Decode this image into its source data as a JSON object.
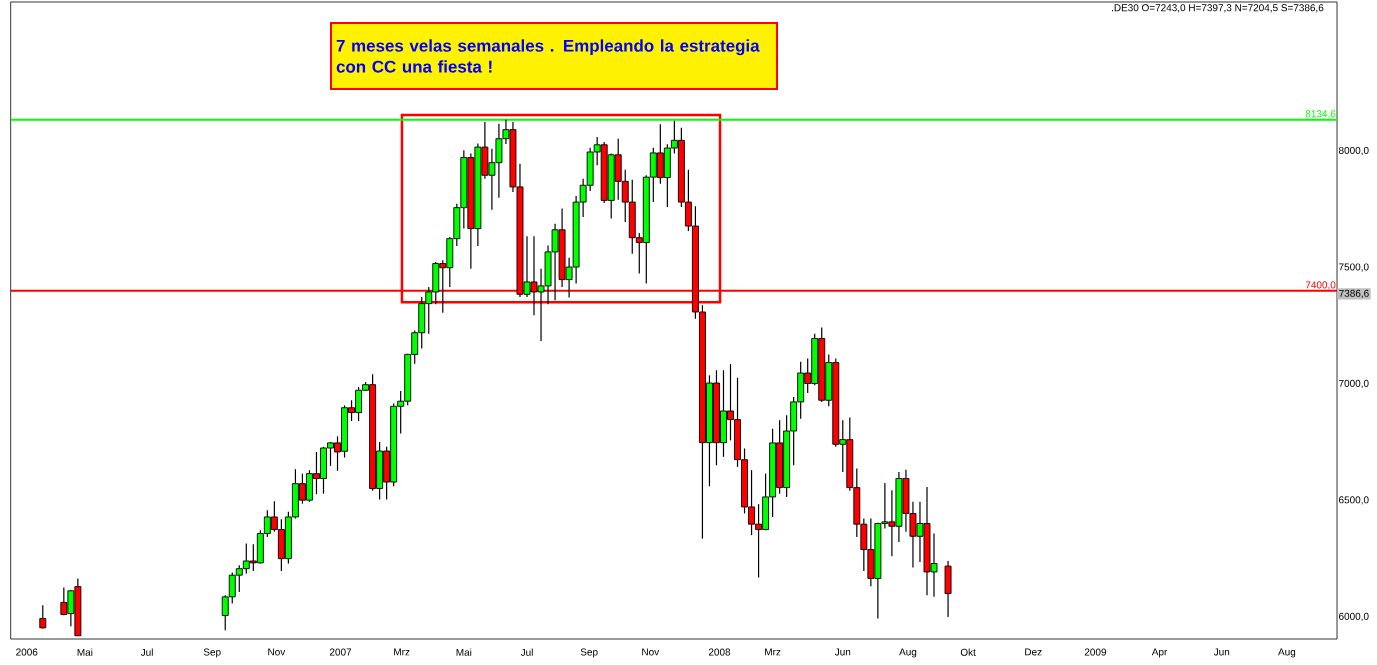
{
  "chart_data": {
    "type": "candlestick",
    "annotations": [
      "7 meses velas semanales . Empleando la estrategia con CC una fiesta !",
      ".DE30 O=7243,0 H=7397,3 N=7204,5 S=7386,6",
      {
        "text": "7386,6",
        "y": 7386.6
      }
    ],
    "xlim": [
      "2006-03-02",
      "2009-10-15"
    ],
    "ylim": [
      5905,
      8640
    ],
    "xticks": [
      {
        "value": "2006-03-18",
        "label": "2006"
      },
      {
        "value": "2006-05-15",
        "label": "Mai"
      },
      {
        "value": "2006-07-16",
        "label": "Jul"
      },
      {
        "value": "2006-09-19",
        "label": "Sep"
      },
      {
        "value": "2006-11-22",
        "label": "Nov"
      },
      {
        "value": "2007-01-25",
        "label": "2007"
      },
      {
        "value": "2007-03-27",
        "label": "Mrz"
      },
      {
        "value": "2007-05-28",
        "label": "Mai"
      },
      {
        "value": "2007-07-30",
        "label": "Jul"
      },
      {
        "value": "2007-09-30",
        "label": "Sep"
      },
      {
        "value": "2007-11-30",
        "label": "Nov"
      },
      {
        "value": "2008-02-07",
        "label": "2008"
      },
      {
        "value": "2008-03-31",
        "label": "Mrz"
      },
      {
        "value": "2008-06-09",
        "label": "Jun"
      },
      {
        "value": "2008-08-13",
        "label": "Aug"
      },
      {
        "value": "2008-10-12",
        "label": "Okt"
      },
      {
        "value": "2008-12-16",
        "label": "Dez"
      },
      {
        "value": "2009-02-16",
        "label": "2009"
      },
      {
        "value": "2009-04-21",
        "label": "Apr"
      },
      {
        "value": "2009-06-22",
        "label": "Jun"
      },
      {
        "value": "2009-08-26",
        "label": "Aug"
      }
    ],
    "yticks": [
      {
        "value": 6000,
        "label": "6000,0"
      },
      {
        "value": 6500,
        "label": "6500,0"
      },
      {
        "value": 7000,
        "label": "7000,0"
      },
      {
        "value": 7500,
        "label": "7500,0"
      },
      {
        "value": 8000,
        "label": "8000,0"
      }
    ],
    "ref_lines": [
      {
        "axis": "y",
        "value": 8134.6,
        "label": "8134,6",
        "color": "#00ff00"
      },
      {
        "axis": "y",
        "value": 7400.0,
        "label": "7400,0",
        "color": "#ff0000"
      }
    ],
    "series": [
      {
        "color": "#00ff00",
        "x": [
          "2006-05-01",
          "2006-10-02",
          "2006-10-09",
          "2006-10-16",
          "2006-10-23",
          "2006-11-06",
          "2006-11-13",
          "2006-12-04",
          "2006-12-11",
          "2006-12-25",
          "2007-01-08",
          "2007-01-15",
          "2007-01-29",
          "2007-02-12",
          "2007-02-19",
          "2007-03-05",
          "2007-03-19",
          "2007-03-26",
          "2007-04-02",
          "2007-04-09",
          "2007-04-16",
          "2007-04-23",
          "2007-04-30",
          "2007-05-14",
          "2007-05-21",
          "2007-05-28",
          "2007-06-11",
          "2007-06-25",
          "2007-07-02",
          "2007-07-09",
          "2007-07-30",
          "2007-08-13",
          "2007-08-20",
          "2007-08-27",
          "2007-09-10",
          "2007-09-17",
          "2007-09-24",
          "2007-10-01",
          "2007-10-08",
          "2007-10-22",
          "2007-11-26",
          "2007-12-03",
          "2007-12-17",
          "2007-12-24",
          "2008-01-28",
          "2008-02-11",
          "2008-03-24",
          "2008-03-31",
          "2008-04-14",
          "2008-04-21",
          "2008-04-28",
          "2008-05-12",
          "2008-05-26",
          "2008-06-09",
          "2008-07-14",
          "2008-07-21",
          "2008-08-04",
          "2008-08-25",
          "2008-09-08"
        ],
        "ohlc": [
          [
            6014,
            6115,
            5960,
            6112
          ],
          [
            6006,
            6093,
            5943,
            6086
          ],
          [
            6086,
            6190,
            6057,
            6179
          ],
          [
            6179,
            6222,
            6107,
            6207
          ],
          [
            6207,
            6315,
            6186,
            6240
          ],
          [
            6232,
            6372,
            6229,
            6358
          ],
          [
            6358,
            6458,
            6343,
            6429
          ],
          [
            6250,
            6451,
            6229,
            6429
          ],
          [
            6429,
            6634,
            6422,
            6572
          ],
          [
            6501,
            6630,
            6494,
            6615
          ],
          [
            6594,
            6730,
            6529,
            6725
          ],
          [
            6725,
            6751,
            6648,
            6747
          ],
          [
            6711,
            6908,
            6684,
            6898
          ],
          [
            6877,
            6987,
            6841,
            6973
          ],
          [
            6973,
            7008,
            6970,
            6997
          ],
          [
            6551,
            6751,
            6504,
            6712
          ],
          [
            6579,
            6916,
            6561,
            6904
          ],
          [
            6904,
            6970,
            6787,
            6926
          ],
          [
            6926,
            7130,
            6909,
            7127
          ],
          [
            7127,
            7230,
            7087,
            7220
          ],
          [
            7220,
            7373,
            7152,
            7345
          ],
          [
            7345,
            7416,
            7216,
            7395
          ],
          [
            7395,
            7524,
            7342,
            7517
          ],
          [
            7499,
            7631,
            7416,
            7624
          ],
          [
            7624,
            7774,
            7592,
            7757
          ],
          [
            7757,
            8003,
            7667,
            7972
          ],
          [
            7667,
            8032,
            7592,
            8017
          ],
          [
            7896,
            8010,
            7748,
            7950
          ],
          [
            7950,
            8117,
            7800,
            8053
          ],
          [
            8053,
            8134.6,
            8030,
            8092
          ],
          [
            7385,
            7634,
            7373,
            7438
          ],
          [
            7395,
            7495,
            7185,
            7421
          ],
          [
            7421,
            7595,
            7342,
            7567
          ],
          [
            7567,
            7688,
            7359,
            7662
          ],
          [
            7448,
            7542,
            7371,
            7502
          ],
          [
            7502,
            7807,
            7431,
            7781
          ],
          [
            7781,
            7881,
            7717,
            7853
          ],
          [
            7853,
            8014,
            7828,
            7996
          ],
          [
            7996,
            8060,
            7939,
            8027
          ],
          [
            7788,
            7990,
            7710,
            7984
          ],
          [
            7607,
            7896,
            7431,
            7888
          ],
          [
            7888,
            8014,
            7781,
            7992
          ],
          [
            7886,
            8029,
            7760,
            8013
          ],
          [
            8013,
            8130,
            7990,
            8046
          ],
          [
            6748,
            7037,
            6561,
            7004
          ],
          [
            6748,
            7059,
            6687,
            6884
          ],
          [
            6375,
            6615,
            6372,
            6515
          ],
          [
            6515,
            6808,
            6429,
            6747
          ],
          [
            6555,
            6866,
            6515,
            6798
          ],
          [
            6798,
            6944,
            6651,
            6923
          ],
          [
            6923,
            7095,
            6851,
            7047
          ],
          [
            7002,
            7216,
            6994,
            7195
          ],
          [
            6930,
            7126,
            6904,
            7092
          ],
          [
            6741,
            6844,
            6622,
            6761
          ],
          [
            6165,
            6404,
            5993,
            6401
          ],
          [
            6401,
            6575,
            6379,
            6408
          ],
          [
            6389,
            6622,
            6322,
            6594
          ],
          [
            6346,
            6494,
            6236,
            6401
          ],
          [
            6193,
            6358,
            6086,
            6229
          ]
        ]
      },
      {
        "color": "#ff0000",
        "x": [
          "2006-04-03",
          "2006-04-24",
          "2006-05-08",
          "2006-10-30",
          "2006-11-20",
          "2006-11-27",
          "2006-12-18",
          "2007-01-01",
          "2007-01-22",
          "2007-02-05",
          "2007-02-26",
          "2007-03-12",
          "2007-05-07",
          "2007-06-04",
          "2007-06-18",
          "2007-07-16",
          "2007-07-23",
          "2007-08-06",
          "2007-09-03",
          "2007-10-15",
          "2007-10-29",
          "2007-11-05",
          "2007-11-12",
          "2007-11-19",
          "2007-12-10",
          "2007-12-31",
          "2008-01-07",
          "2008-01-14",
          "2008-01-21",
          "2008-02-04",
          "2008-02-18",
          "2008-02-25",
          "2008-03-03",
          "2008-03-10",
          "2008-03-17",
          "2008-04-07",
          "2008-05-05",
          "2008-05-19",
          "2008-06-02",
          "2008-06-16",
          "2008-06-23",
          "2008-06-30",
          "2008-07-07",
          "2008-07-28",
          "2008-08-11",
          "2008-08-18",
          "2008-09-01",
          "2008-09-22"
        ],
        "ohlc": [
          [
            5993,
            6050,
            5950,
            5953
          ],
          [
            6062,
            6126,
            6007,
            6010
          ],
          [
            6130,
            6165,
            5919,
            5919
          ],
          [
            6240,
            6312,
            6197,
            6232
          ],
          [
            6429,
            6496,
            6365,
            6375
          ],
          [
            6375,
            6419,
            6197,
            6250
          ],
          [
            6572,
            6615,
            6486,
            6501
          ],
          [
            6615,
            6708,
            6527,
            6594
          ],
          [
            6747,
            6775,
            6627,
            6708
          ],
          [
            6898,
            6930,
            6841,
            6877
          ],
          [
            6997,
            7042,
            6541,
            6551
          ],
          [
            6712,
            6730,
            6504,
            6579
          ],
          [
            7517,
            7531,
            7306,
            7499
          ],
          [
            7972,
            7989,
            7495,
            7667
          ],
          [
            8017,
            8125,
            7881,
            7896
          ],
          [
            8092,
            8125,
            7824,
            7846
          ],
          [
            7846,
            7946,
            7373,
            7385
          ],
          [
            7438,
            7634,
            7295,
            7395
          ],
          [
            7662,
            7753,
            7416,
            7448
          ],
          [
            8027,
            8039,
            7777,
            7788
          ],
          [
            7984,
            8053,
            7791,
            7870
          ],
          [
            7870,
            7920,
            7695,
            7781
          ],
          [
            7781,
            7877,
            7559,
            7628
          ],
          [
            7628,
            7648,
            7474,
            7607
          ],
          [
            7992,
            8115,
            7860,
            7886
          ],
          [
            8046,
            8100,
            7760,
            7781
          ],
          [
            7781,
            7920,
            7657,
            7678
          ],
          [
            7678,
            7763,
            7280,
            7309
          ],
          [
            7309,
            7338,
            6336,
            6748
          ],
          [
            7004,
            7059,
            6651,
            6748
          ],
          [
            6884,
            7085,
            6758,
            6847
          ],
          [
            6847,
            7027,
            6644,
            6675
          ],
          [
            6675,
            6723,
            6444,
            6472
          ],
          [
            6472,
            6630,
            6351,
            6398
          ],
          [
            6398,
            6484,
            6169,
            6375
          ],
          [
            6747,
            6844,
            6529,
            6555
          ],
          [
            7047,
            7109,
            6961,
            7002
          ],
          [
            7195,
            7242,
            6923,
            6930
          ],
          [
            7092,
            7109,
            6730,
            6741
          ],
          [
            6761,
            6856,
            6541,
            6555
          ],
          [
            6555,
            6637,
            6343,
            6398
          ],
          [
            6398,
            6422,
            6197,
            6289
          ],
          [
            6289,
            6422,
            6132,
            6165
          ],
          [
            6408,
            6544,
            6260,
            6389
          ],
          [
            6594,
            6632,
            6365,
            6444
          ],
          [
            6444,
            6494,
            6212,
            6346
          ],
          [
            6401,
            6558,
            6093,
            6193
          ],
          [
            6218,
            6240,
            6000,
            6100
          ]
        ]
      }
    ]
  }
}
